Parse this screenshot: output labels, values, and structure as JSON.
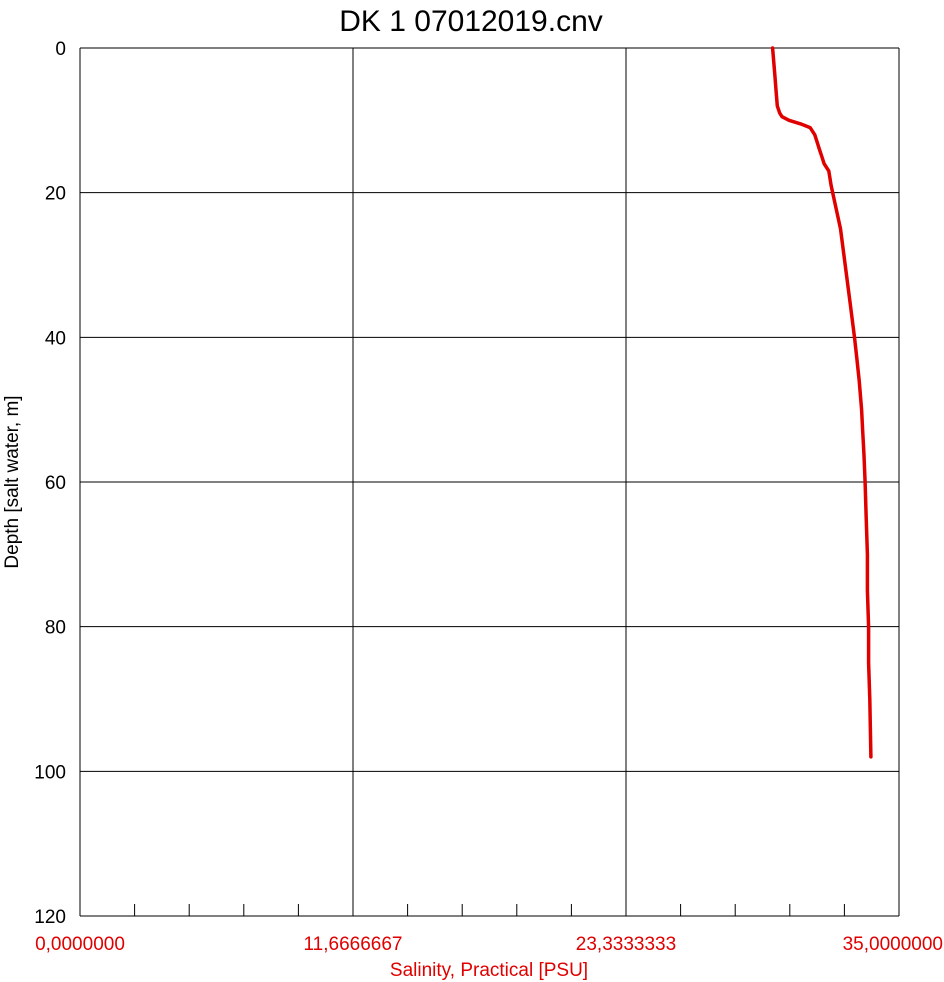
{
  "chart_data": {
    "type": "line",
    "title": "DK 1 07012019.cnv",
    "xlabel": "Salinity, Practical [PSU]",
    "ylabel": "Depth [salt water, m]",
    "xlim": [
      0,
      35
    ],
    "ylim": [
      0,
      120
    ],
    "y_inverted": true,
    "grid": true,
    "x_ticks": [
      0,
      11.6666667,
      23.3333333,
      35
    ],
    "x_tick_labels": [
      "0,0000000",
      "11,6666667",
      "23,3333333",
      "35,0000000"
    ],
    "x_minor_ticks": 4,
    "y_ticks": [
      0,
      20,
      40,
      60,
      80,
      100,
      120
    ],
    "y_tick_labels": [
      "0",
      "20",
      "40",
      "60",
      "80",
      "100",
      "120"
    ],
    "colors": {
      "series": "#e00000",
      "axis_label": "#e00000",
      "grid": "#000000"
    },
    "series": [
      {
        "x": [
          29.6,
          29.65,
          29.7,
          29.75,
          29.8,
          29.85,
          29.9,
          30.0,
          30.3,
          30.8,
          31.2,
          31.4,
          31.5,
          31.6,
          31.7,
          31.8,
          32.0,
          32.1,
          32.3,
          32.5,
          32.7,
          32.9,
          33.1,
          33.2,
          33.3,
          33.4,
          33.45,
          33.5,
          33.55,
          33.6,
          33.65,
          33.65,
          33.7,
          33.7,
          33.75,
          33.8
        ],
        "y": [
          0,
          2,
          4,
          6,
          8,
          8.5,
          9,
          9.5,
          10,
          10.5,
          11,
          12,
          13,
          14,
          15,
          16,
          17,
          19,
          22,
          25,
          30,
          35,
          40,
          43,
          46,
          50,
          53,
          56,
          60,
          65,
          70,
          75,
          80,
          85,
          90,
          98
        ]
      }
    ]
  }
}
